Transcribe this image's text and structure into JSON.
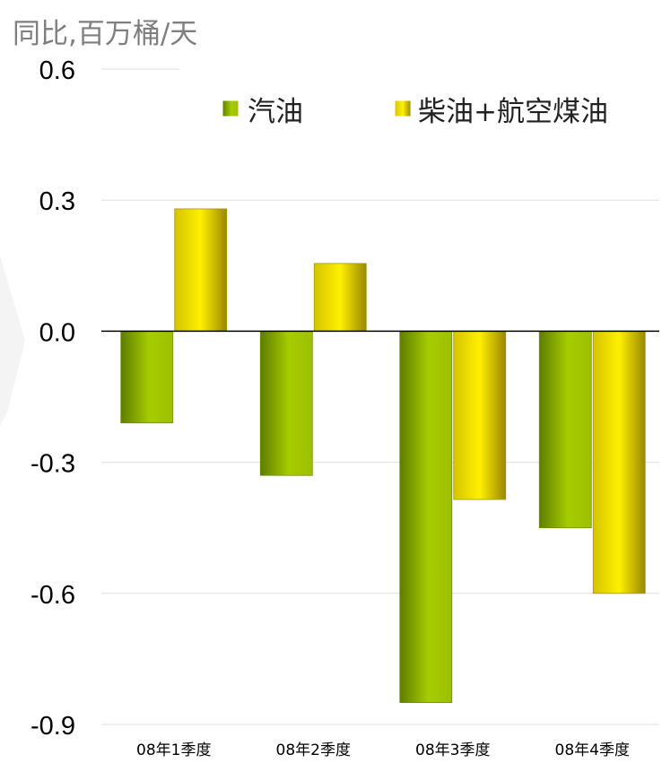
{
  "chart_data": {
    "type": "bar",
    "unit_label": "同比,百万桶/天",
    "categories": [
      "08年1季度",
      "08年2季度",
      "08年3季度",
      "08年4季度"
    ],
    "series": [
      {
        "name": "汽油",
        "values": [
          -0.21,
          -0.33,
          -0.85,
          -0.45
        ],
        "color": "#8fb000"
      },
      {
        "name": "柴油+航空煤油",
        "values": [
          0.28,
          0.155,
          -0.385,
          -0.6
        ],
        "color": "#e8d800"
      }
    ],
    "ylim": [
      -0.9,
      0.6
    ],
    "yticks": [
      "0.6",
      "0.3",
      "0.0",
      "-0.3",
      "-0.6",
      "-0.9"
    ],
    "ytick_values": [
      0.6,
      0.3,
      0.0,
      -0.3,
      -0.6,
      -0.9
    ],
    "grid": true,
    "legend_position": "top"
  }
}
